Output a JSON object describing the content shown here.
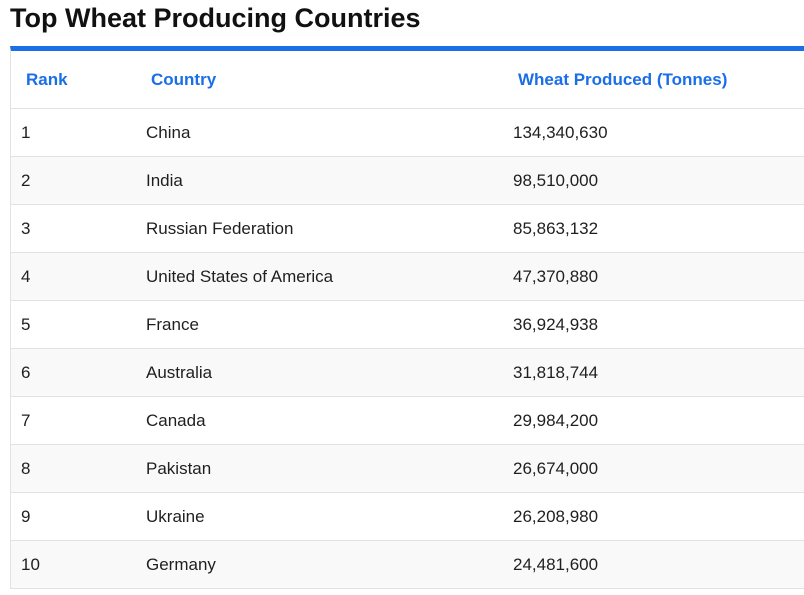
{
  "title": "Top Wheat Producing Countries",
  "accent_color": "#1a6ee8",
  "table": {
    "headers": {
      "rank": "Rank",
      "country": "Country",
      "wheat": "Wheat Produced (Tonnes)"
    },
    "rows": [
      {
        "rank": "1",
        "country": "China",
        "wheat": "134,340,630"
      },
      {
        "rank": "2",
        "country": "India",
        "wheat": "98,510,000"
      },
      {
        "rank": "3",
        "country": "Russian Federation",
        "wheat": "85,863,132"
      },
      {
        "rank": "4",
        "country": "United States of America",
        "wheat": "47,370,880"
      },
      {
        "rank": "5",
        "country": "France",
        "wheat": "36,924,938"
      },
      {
        "rank": "6",
        "country": "Australia",
        "wheat": "31,818,744"
      },
      {
        "rank": "7",
        "country": "Canada",
        "wheat": "29,984,200"
      },
      {
        "rank": "8",
        "country": "Pakistan",
        "wheat": "26,674,000"
      },
      {
        "rank": "9",
        "country": "Ukraine",
        "wheat": "26,208,980"
      },
      {
        "rank": "10",
        "country": "Germany",
        "wheat": "24,481,600"
      }
    ]
  }
}
